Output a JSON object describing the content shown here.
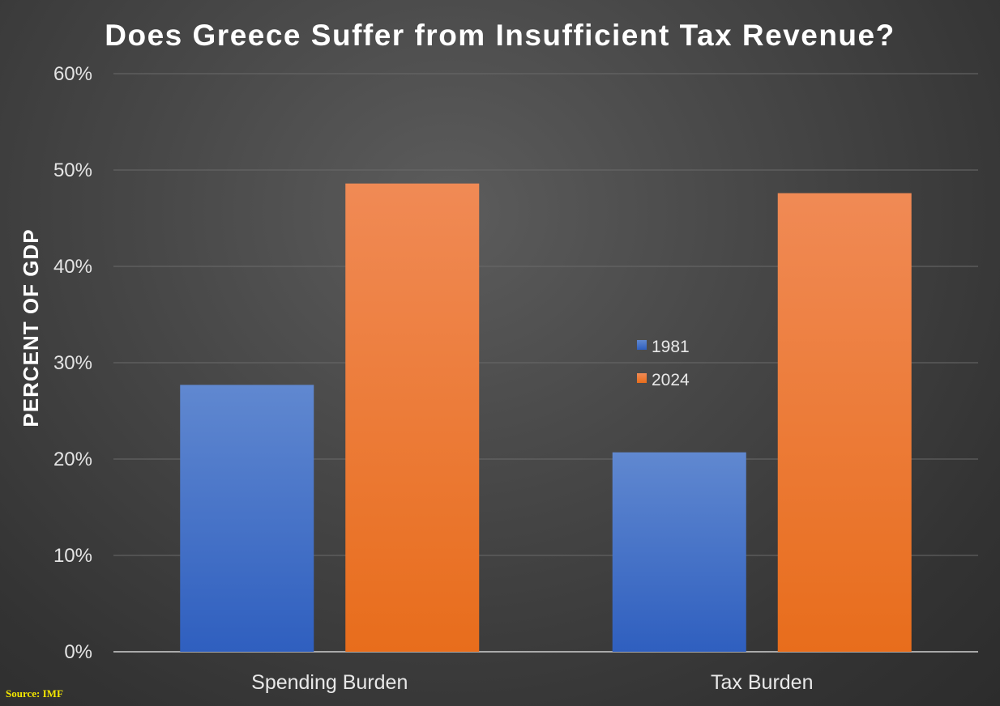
{
  "chart_data": {
    "type": "bar",
    "title": "Does Greece Suffer from Insufficient Tax Revenue?",
    "ylabel": "PERCENT OF GDP",
    "xlabel": "",
    "categories": [
      "Spending Burden",
      "Tax Burden"
    ],
    "series": [
      {
        "name": "1981",
        "values": [
          27.7,
          20.7
        ],
        "color": "#4472c4"
      },
      {
        "name": "2024",
        "values": [
          48.6,
          47.6
        ],
        "color": "#ed7d31"
      }
    ],
    "ylim": [
      0,
      60
    ],
    "yticks": [
      "0%",
      "10%",
      "20%",
      "30%",
      "40%",
      "50%",
      "60%"
    ],
    "grid": true,
    "legend_position": "center"
  },
  "source": "Source: IMF"
}
